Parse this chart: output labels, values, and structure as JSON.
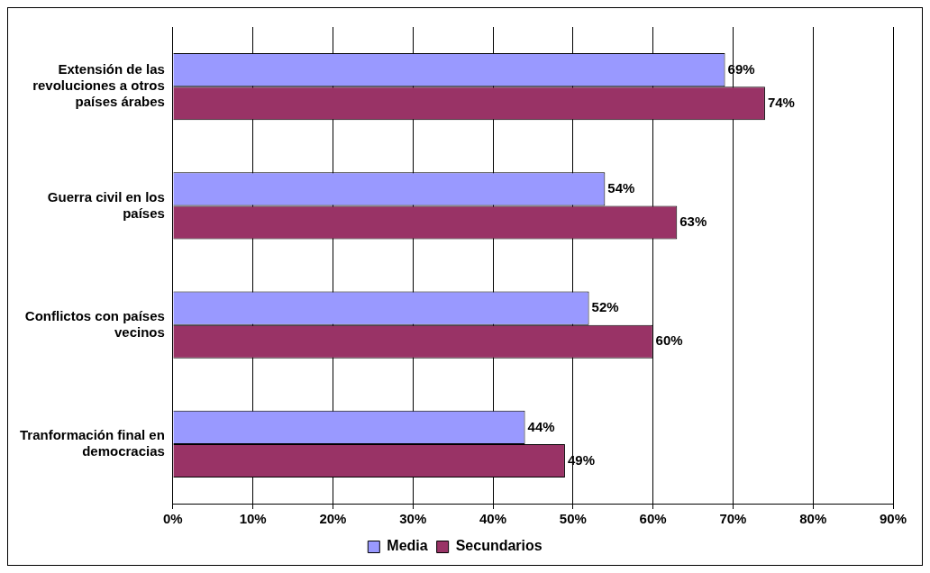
{
  "chart_data": {
    "type": "bar",
    "orientation": "horizontal",
    "categories": [
      "Extensión de las revoluciones a otros países árabes",
      "Guerra civil en los países",
      "Conflictos con países vecinos",
      "Tranformación final en democracias"
    ],
    "series": [
      {
        "name": "Media",
        "color": "#9999ff",
        "values": [
          69,
          54,
          52,
          44
        ],
        "value_labels": [
          "69%",
          "54%",
          "52%",
          "44%"
        ]
      },
      {
        "name": "Secundarios",
        "color": "#993366",
        "values": [
          74,
          63,
          60,
          49
        ],
        "value_labels": [
          "74%",
          "63%",
          "60%",
          "49%"
        ]
      }
    ],
    "xlim": [
      0,
      90
    ],
    "xticks": [
      {
        "value": 0,
        "label": "0%"
      },
      {
        "value": 10,
        "label": "10%"
      },
      {
        "value": 20,
        "label": "20%"
      },
      {
        "value": 30,
        "label": "30%"
      },
      {
        "value": 40,
        "label": "40%"
      },
      {
        "value": 50,
        "label": "50%"
      },
      {
        "value": 60,
        "label": "60%"
      },
      {
        "value": 70,
        "label": "70%"
      },
      {
        "value": 80,
        "label": "80%"
      },
      {
        "value": 90,
        "label": "90%"
      }
    ],
    "grid": "x",
    "legend": "bottom"
  }
}
